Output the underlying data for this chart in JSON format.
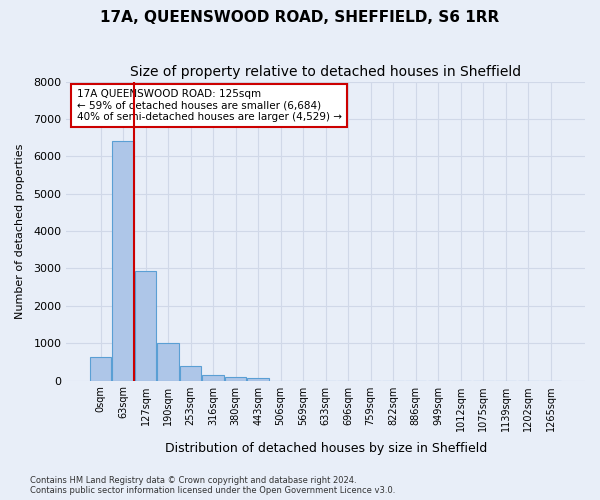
{
  "title": "17A, QUEENSWOOD ROAD, SHEFFIELD, S6 1RR",
  "subtitle": "Size of property relative to detached houses in Sheffield",
  "xlabel": "Distribution of detached houses by size in Sheffield",
  "ylabel": "Number of detached properties",
  "footer_line1": "Contains HM Land Registry data © Crown copyright and database right 2024.",
  "footer_line2": "Contains public sector information licensed under the Open Government Licence v3.0.",
  "bin_labels": [
    "0sqm",
    "63sqm",
    "127sqm",
    "190sqm",
    "253sqm",
    "316sqm",
    "380sqm",
    "443sqm",
    "506sqm",
    "569sqm",
    "633sqm",
    "696sqm",
    "759sqm",
    "822sqm",
    "886sqm",
    "949sqm",
    "1012sqm",
    "1075sqm",
    "1139sqm",
    "1202sqm",
    "1265sqm"
  ],
  "bar_values": [
    620,
    6400,
    2920,
    1000,
    380,
    160,
    100,
    70,
    0,
    0,
    0,
    0,
    0,
    0,
    0,
    0,
    0,
    0,
    0,
    0,
    0
  ],
  "bar_color": "#aec6e8",
  "bar_edge_color": "#5a9fd4",
  "vline_x": 1.5,
  "vline_color": "#cc0000",
  "annotation_text": "17A QUEENSWOOD ROAD: 125sqm\n← 59% of detached houses are smaller (6,684)\n40% of semi-detached houses are larger (4,529) →",
  "annotation_box_color": "#ffffff",
  "annotation_box_edge": "#cc0000",
  "ylim": [
    0,
    8000
  ],
  "yticks": [
    0,
    1000,
    2000,
    3000,
    4000,
    5000,
    6000,
    7000,
    8000
  ],
  "grid_color": "#d0d8e8",
  "background_color": "#e8eef8",
  "title_fontsize": 11,
  "subtitle_fontsize": 10
}
